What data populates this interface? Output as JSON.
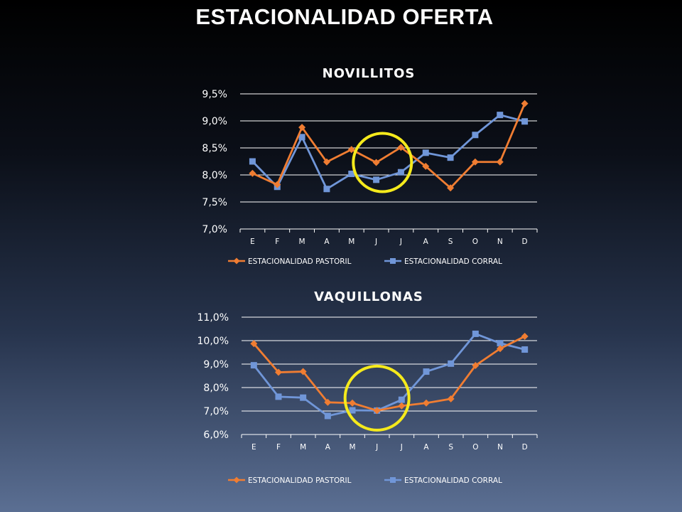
{
  "slide": {
    "title": "ESTACIONALIDAD OFERTA"
  },
  "colors": {
    "pastoril": "#f07d32",
    "corral": "#7096d8",
    "highlight": "#f5ea1c",
    "grid": "#ffffff",
    "text": "#ffffff"
  },
  "chart_data": [
    {
      "type": "line",
      "title": "NOVILLITOS",
      "categories": [
        "E",
        "F",
        "M",
        "A",
        "M",
        "J",
        "J",
        "A",
        "S",
        "O",
        "N",
        "D"
      ],
      "ylim": [
        7.0,
        9.5
      ],
      "yticks": [
        7.0,
        7.5,
        8.0,
        8.5,
        9.0,
        9.5
      ],
      "ytick_labels": [
        "7,0%",
        "7,5%",
        "8,0%",
        "8,5%",
        "9,0%",
        "9,5%"
      ],
      "grid": true,
      "legend": "bottom",
      "series": [
        {
          "name": "ESTACIONALIDAD PASTORIL",
          "marker": "diamond",
          "values": [
            8.03,
            7.82,
            8.88,
            8.24,
            8.47,
            8.23,
            8.51,
            8.16,
            7.76,
            8.24,
            8.24,
            9.32
          ]
        },
        {
          "name": "ESTACIONALIDAD CORRAL",
          "marker": "square",
          "values": [
            8.25,
            7.78,
            8.7,
            7.74,
            8.02,
            7.91,
            8.05,
            8.41,
            8.32,
            8.74,
            9.11,
            8.99
          ]
        }
      ],
      "highlight": {
        "shape": "circle",
        "center": [
          5.25,
          8.23
        ]
      }
    },
    {
      "type": "line",
      "title": "VAQUILLONAS",
      "categories": [
        "E",
        "F",
        "M",
        "A",
        "M",
        "J",
        "J",
        "A",
        "S",
        "O",
        "N",
        "D"
      ],
      "ylim": [
        6.0,
        11.0
      ],
      "yticks": [
        6.0,
        7.0,
        8.0,
        9.0,
        10.0,
        11.0
      ],
      "ytick_labels": [
        "6,0%",
        "7,0%",
        "8,0%",
        "9,0%",
        "10,0%",
        "11,0%"
      ],
      "grid": true,
      "legend": "bottom",
      "series": [
        {
          "name": "ESTACIONALIDAD PASTORIL",
          "marker": "diamond",
          "values": [
            9.87,
            8.65,
            8.68,
            7.37,
            7.34,
            7.02,
            7.22,
            7.34,
            7.52,
            8.94,
            9.66,
            10.18
          ]
        },
        {
          "name": "ESTACIONALIDAD CORRAL",
          "marker": "square",
          "values": [
            8.95,
            7.61,
            7.57,
            6.79,
            7.03,
            7.02,
            7.48,
            8.68,
            9.02,
            10.29,
            9.89,
            9.62
          ]
        }
      ],
      "highlight": {
        "shape": "circle",
        "center": [
          5.0,
          7.55
        ]
      }
    }
  ]
}
